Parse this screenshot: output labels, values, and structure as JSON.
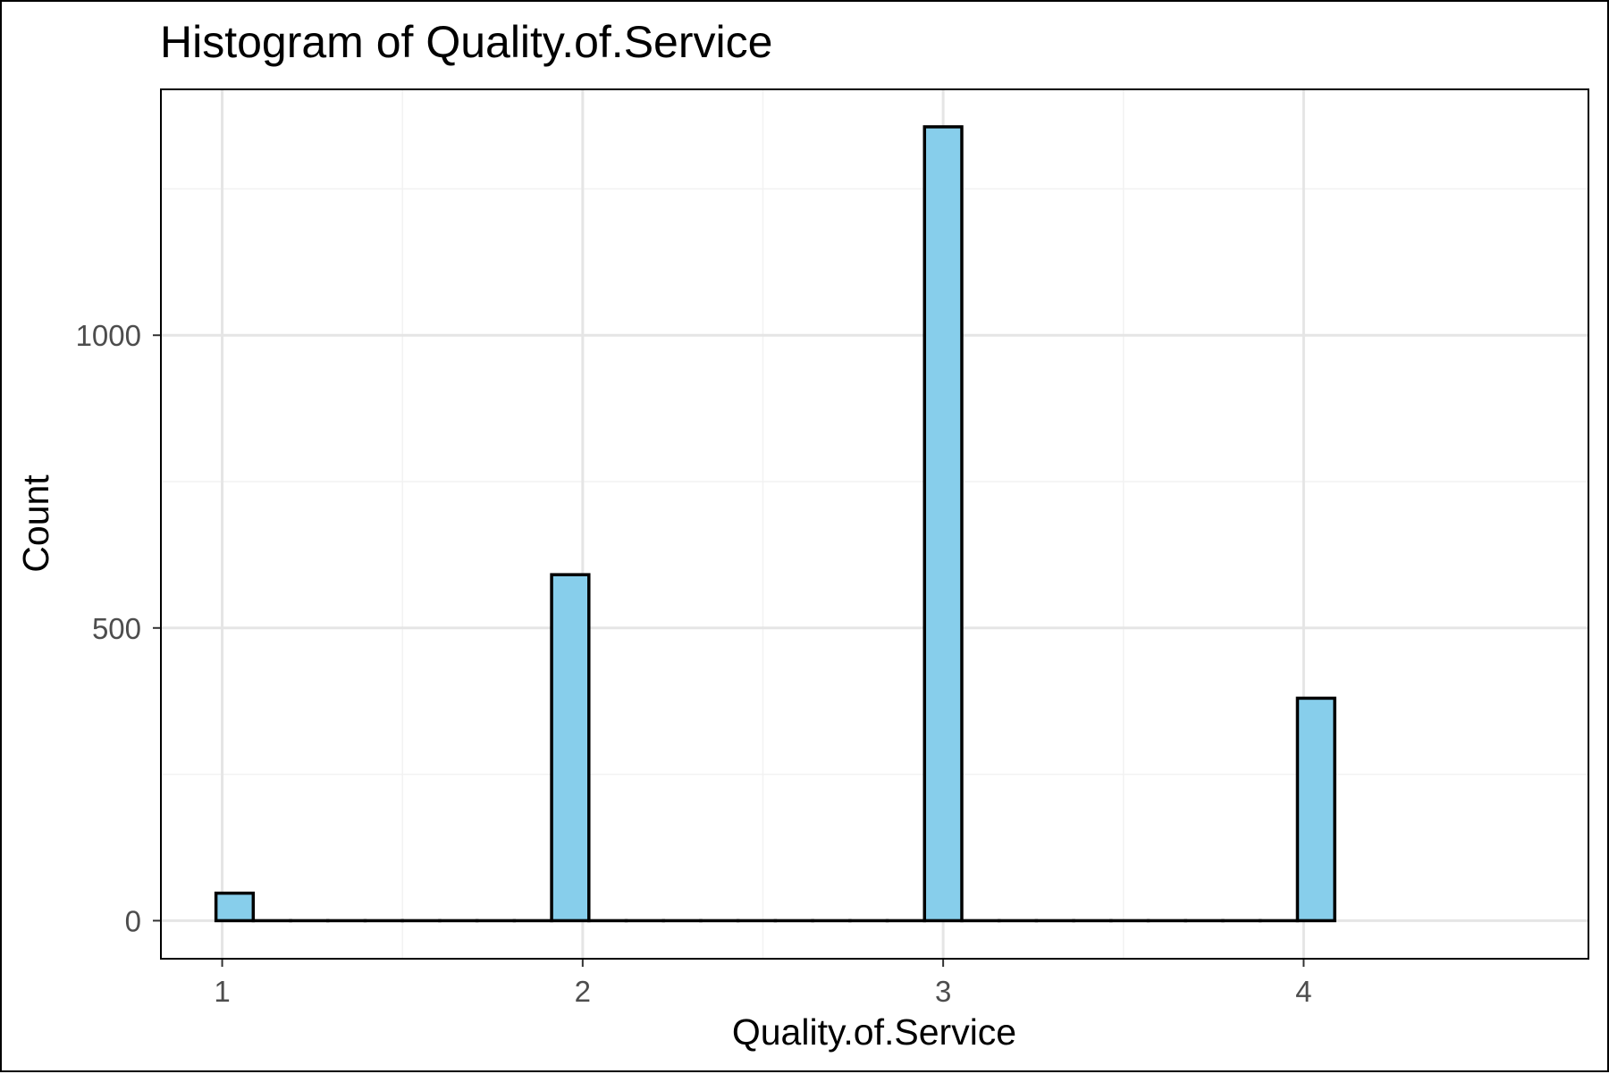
{
  "chart_data": {
    "type": "bar",
    "title": "Histogram of Quality.of.Service",
    "xlabel": "Quality.of.Service",
    "ylabel": "Count",
    "xlim": [
      0.83,
      4.79
    ],
    "ylim": [
      -65,
      1420
    ],
    "x_ticks": [
      1,
      2,
      3,
      4
    ],
    "x_tick_labels": [
      "1",
      "2",
      "3",
      "4"
    ],
    "y_ticks": [
      0,
      500,
      1000
    ],
    "y_tick_labels": [
      "0",
      "500",
      "1000"
    ],
    "y_minor_ticks": [
      250,
      750,
      1250
    ],
    "bin_width": 0.1034,
    "bins": [
      {
        "x": 1.0345,
        "count": 47
      },
      {
        "x": 1.1379,
        "count": 0
      },
      {
        "x": 1.2414,
        "count": 0
      },
      {
        "x": 1.3448,
        "count": 0
      },
      {
        "x": 1.4483,
        "count": 0
      },
      {
        "x": 1.5517,
        "count": 0
      },
      {
        "x": 1.6552,
        "count": 0
      },
      {
        "x": 1.7586,
        "count": 0
      },
      {
        "x": 1.8621,
        "count": 0
      },
      {
        "x": 1.9655,
        "count": 591
      },
      {
        "x": 2.069,
        "count": 0
      },
      {
        "x": 2.1724,
        "count": 0
      },
      {
        "x": 2.2759,
        "count": 0
      },
      {
        "x": 2.3793,
        "count": 0
      },
      {
        "x": 2.4828,
        "count": 0
      },
      {
        "x": 2.5862,
        "count": 0
      },
      {
        "x": 2.6897,
        "count": 0
      },
      {
        "x": 2.7931,
        "count": 0
      },
      {
        "x": 2.8966,
        "count": 0
      },
      {
        "x": 3.0,
        "count": 1356
      },
      {
        "x": 3.1034,
        "count": 0
      },
      {
        "x": 3.2069,
        "count": 0
      },
      {
        "x": 3.3103,
        "count": 0
      },
      {
        "x": 3.4138,
        "count": 0
      },
      {
        "x": 3.5172,
        "count": 0
      },
      {
        "x": 3.6207,
        "count": 0
      },
      {
        "x": 3.7241,
        "count": 0
      },
      {
        "x": 3.8276,
        "count": 0
      },
      {
        "x": 3.931,
        "count": 0
      },
      {
        "x": 4.0345,
        "count": 380
      }
    ],
    "grid": true,
    "legend": "none"
  },
  "colors": {
    "bar_fill": "#87ceeb",
    "bar_outline": "#000000",
    "grid_major": "#e5e5e5",
    "grid_minor": "#f2f2f2",
    "panel_border": "#000000",
    "tick_text": "#4d4d4d"
  }
}
